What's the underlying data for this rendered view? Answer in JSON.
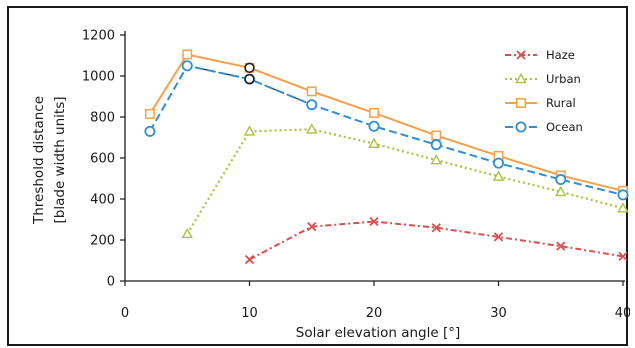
{
  "chart_data": {
    "type": "line",
    "xlabel": "Solar elevation angle [°]",
    "ylabel_lines": [
      "Threshold distance",
      "[blade width units]"
    ],
    "xlim": [
      0,
      40
    ],
    "ylim": [
      0,
      1200
    ],
    "xticks": [
      0,
      10,
      20,
      30,
      40
    ],
    "yticks": [
      0,
      200,
      400,
      600,
      800,
      1000,
      1200
    ],
    "grid": false,
    "legend_position": "top-right",
    "series": [
      {
        "name": "Haze",
        "color": "#d94f4f",
        "marker": "x",
        "dash": "6,3,2,3",
        "x": [
          10,
          15,
          20,
          25,
          30,
          35,
          40
        ],
        "y": [
          105,
          265,
          290,
          260,
          215,
          170,
          120
        ]
      },
      {
        "name": "Urban",
        "color": "#a8c43c",
        "marker": "triangle",
        "dash": "2,3",
        "x": [
          5,
          10,
          15,
          20,
          25,
          30,
          35,
          40
        ],
        "y": [
          230,
          730,
          740,
          670,
          590,
          510,
          435,
          355
        ]
      },
      {
        "name": "Rural",
        "color": "#f5a04a",
        "marker": "square",
        "dash": "",
        "x": [
          2,
          5,
          10,
          15,
          20,
          25,
          30,
          35,
          40
        ],
        "y": [
          815,
          1105,
          1040,
          925,
          820,
          710,
          610,
          515,
          440
        ]
      },
      {
        "name": "Ocean",
        "color": "#2e8fd6",
        "marker": "circle",
        "dash": "8,4",
        "x": [
          2,
          5,
          10,
          15,
          20,
          25,
          30,
          35,
          40
        ],
        "y": [
          730,
          1050,
          985,
          860,
          755,
          665,
          575,
          495,
          420
        ]
      }
    ],
    "annotations": [
      {
        "type": "dashed-connector",
        "color": "#222222",
        "x": [
          5,
          10,
          15
        ],
        "y": [
          1050,
          985,
          860
        ]
      },
      {
        "type": "dotted-connector",
        "color": "#222222",
        "x": [
          5,
          10,
          15
        ],
        "y": [
          1105,
          1040,
          925
        ]
      },
      {
        "type": "highlighted-points",
        "color": "#222222",
        "x": [
          10,
          10
        ],
        "y": [
          1040,
          985
        ]
      }
    ]
  }
}
